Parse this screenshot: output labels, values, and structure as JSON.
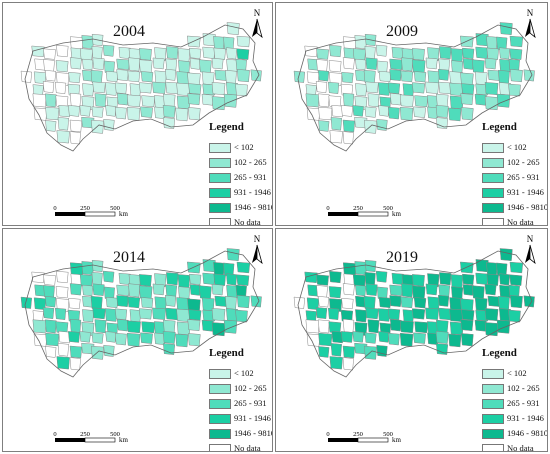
{
  "legend": {
    "title": "Legend",
    "classes": [
      {
        "label": "< 102",
        "color": "#c9f4e9"
      },
      {
        "label": "102 - 265",
        "color": "#8fe8d2"
      },
      {
        "label": "265 - 931",
        "color": "#4fdcbb"
      },
      {
        "label": "931 - 1946",
        "color": "#1ccfa4"
      },
      {
        "label": "1946 - 9810",
        "color": "#0db98f"
      },
      {
        "label": "No data",
        "color": "#ffffff"
      }
    ]
  },
  "scale_bar": {
    "ticks": [
      "0",
      "250",
      "500"
    ],
    "unit": "km"
  },
  "north_label": "N",
  "panels": [
    {
      "year": "2004",
      "intensity": 0
    },
    {
      "year": "2009",
      "intensity": 1
    },
    {
      "year": "2014",
      "intensity": 2
    },
    {
      "year": "2019",
      "intensity": 3
    }
  ]
}
